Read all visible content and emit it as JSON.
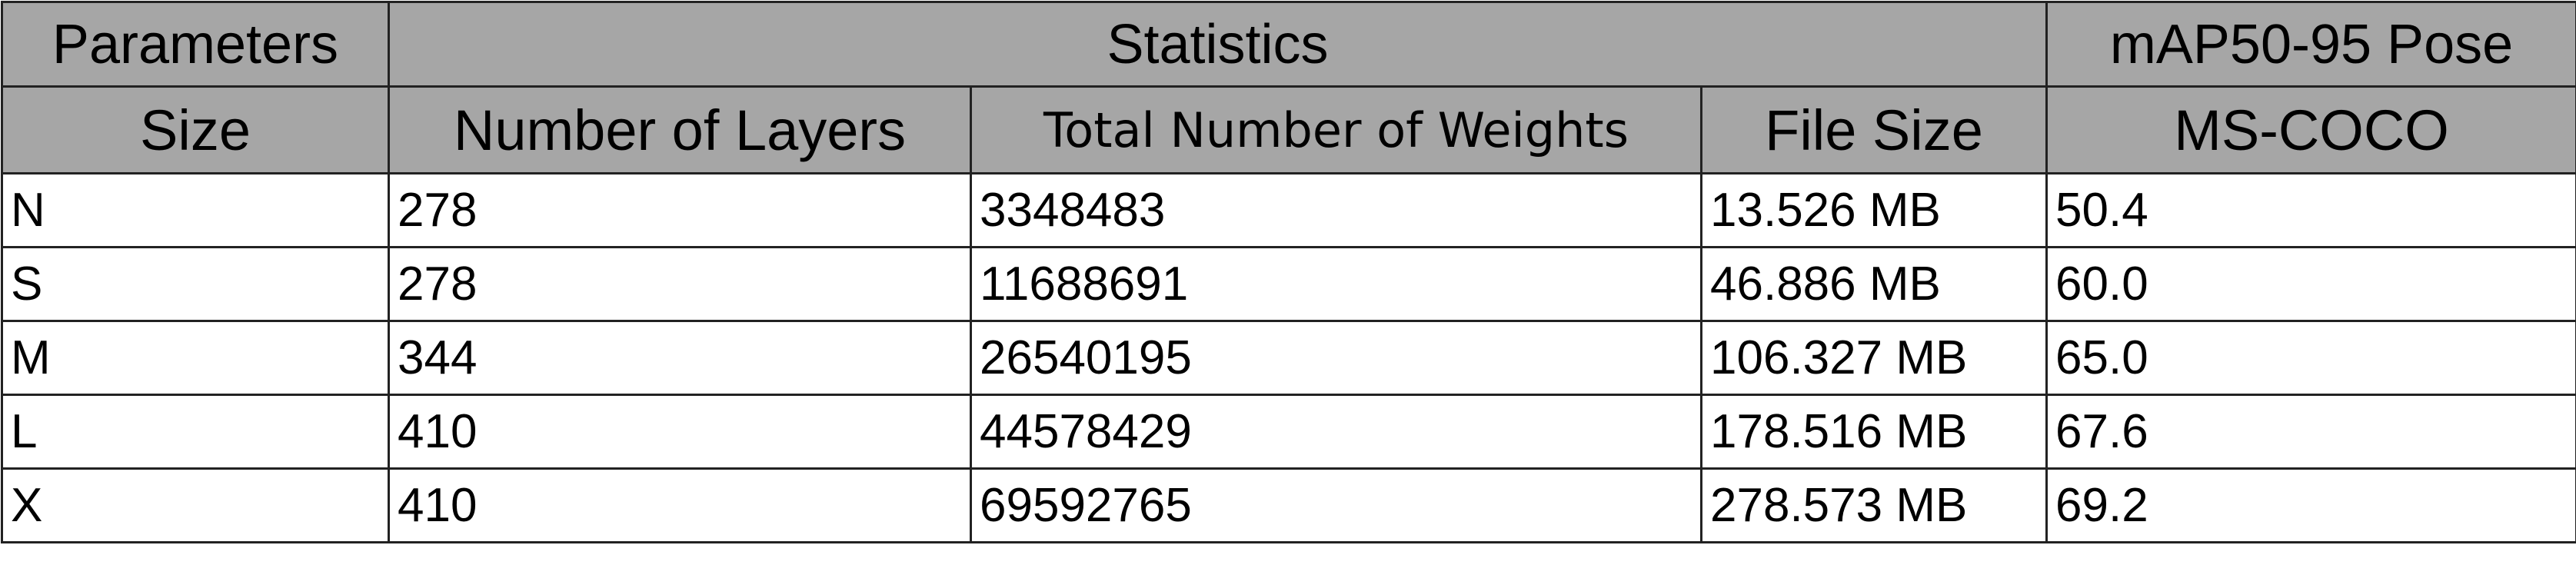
{
  "group_headers": {
    "parameters": "Parameters",
    "statistics": "Statistics",
    "pose": "mAP50-95 Pose"
  },
  "column_headers": {
    "size": "Size",
    "layers": "Number of Layers",
    "weights": "Total Number of Weights",
    "file_size": "File Size",
    "dataset": "MS-COCO"
  },
  "rows": [
    {
      "size": "N",
      "layers": "278",
      "weights": "3348483",
      "file_size": "13.526 MB",
      "map": "50.4"
    },
    {
      "size": "S",
      "layers": "278",
      "weights": "11688691",
      "file_size": "46.886 MB",
      "map": "60.0"
    },
    {
      "size": "M",
      "layers": "344",
      "weights": "26540195",
      "file_size": "106.327 MB",
      "map": "65.0"
    },
    {
      "size": "L",
      "layers": "410",
      "weights": "44578429",
      "file_size": "178.516 MB",
      "map": "67.6"
    },
    {
      "size": "X",
      "layers": "410",
      "weights": "69592765",
      "file_size": "278.573 MB",
      "map": "69.2"
    }
  ]
}
